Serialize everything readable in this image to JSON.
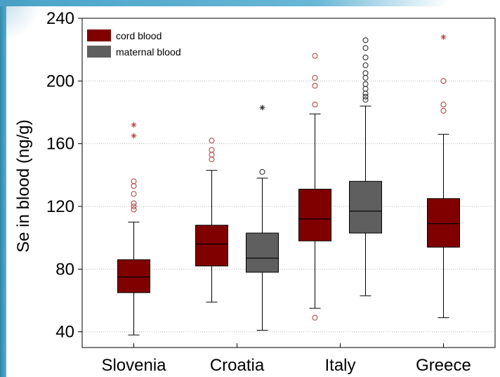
{
  "chart_data": {
    "type": "box",
    "title": "",
    "xlabel": "",
    "ylabel": "Se in blood (ng/g)",
    "ylim": [
      30,
      240
    ],
    "yticks": [
      40,
      80,
      120,
      160,
      200,
      240
    ],
    "grid": "horizontal dotted",
    "legend_position": "top-left",
    "categories": [
      "Slovenia",
      "Croatia",
      "Italy",
      "Greece"
    ],
    "series": [
      {
        "name": "cord blood",
        "color": "#800000",
        "outlier_color": "#b04848",
        "boxes": [
          {
            "category": "Slovenia",
            "whisker_low": 38,
            "q1": 65,
            "median": 75,
            "q3": 86,
            "whisker_high": 110,
            "outliers": [
              118,
              120,
              122,
              128,
              133,
              136
            ],
            "extremes": [
              165,
              172
            ]
          },
          {
            "category": "Croatia",
            "whisker_low": 59,
            "q1": 82,
            "median": 96,
            "q3": 108,
            "whisker_high": 143,
            "outliers": [
              150,
              153,
              156,
              162
            ],
            "extremes": []
          },
          {
            "category": "Italy",
            "whisker_low": 55,
            "q1": 98,
            "median": 112,
            "q3": 131,
            "whisker_high": 179,
            "outliers": [
              49,
              185,
              197,
              202,
              216
            ],
            "extremes": []
          },
          {
            "category": "Greece",
            "whisker_low": 49,
            "q1": 94,
            "median": 109,
            "q3": 125,
            "whisker_high": 166,
            "outliers": [
              181,
              185,
              200
            ],
            "extremes": [
              228
            ]
          }
        ]
      },
      {
        "name": "maternal blood",
        "color": "#5f5f5f",
        "outlier_color": "#303030",
        "boxes": [
          {
            "category": "Croatia",
            "whisker_low": 41,
            "q1": 78,
            "median": 87,
            "q3": 103,
            "whisker_high": 138,
            "outliers": [
              142
            ],
            "extremes": [
              183
            ]
          },
          {
            "category": "Italy",
            "whisker_low": 63,
            "q1": 103,
            "median": 117,
            "q3": 136,
            "whisker_high": 184,
            "outliers": [
              188,
              190,
              192,
              195,
              198,
              202,
              205,
              210,
              215,
              221,
              226
            ],
            "extremes": []
          }
        ]
      }
    ]
  }
}
